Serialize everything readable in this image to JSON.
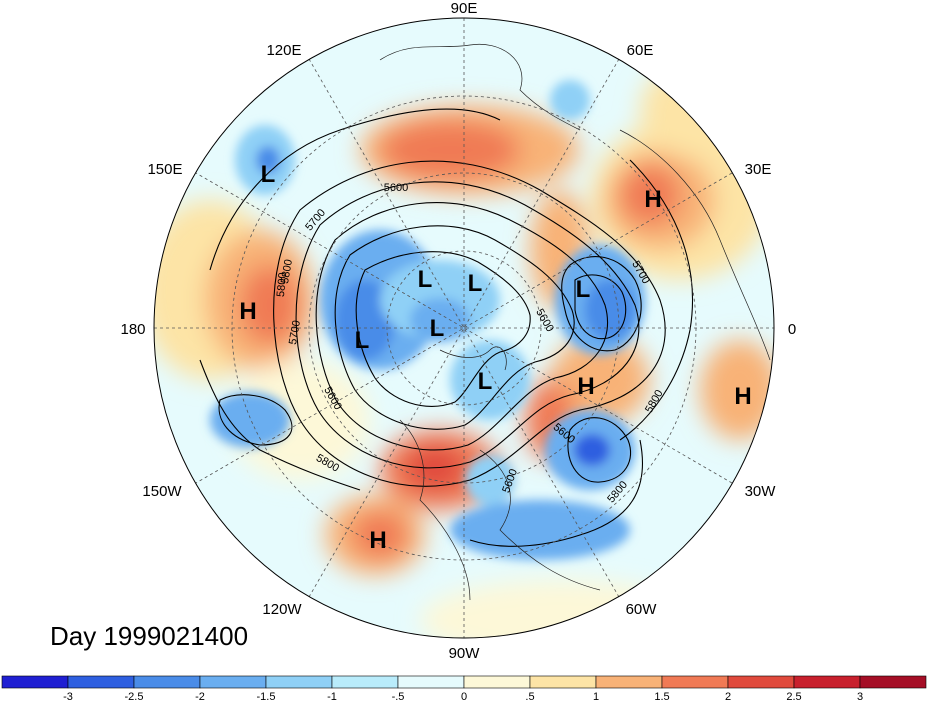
{
  "title": "Day 1999021400",
  "longitude_labels": [
    "90E",
    "60E",
    "30E",
    "0",
    "30W",
    "60W",
    "90W",
    "120W",
    "150W",
    "180",
    "150E",
    "120E"
  ],
  "pressure_systems": [
    "L",
    "L",
    "L",
    "L",
    "L",
    "L",
    "L",
    "H",
    "H",
    "H",
    "H",
    "H"
  ],
  "contour_labels": [
    "5600",
    "5700",
    "5800",
    "5700",
    "5600",
    "5800",
    "5600",
    "5700",
    "5800",
    "5600",
    "5800",
    "5600",
    "5800"
  ],
  "colorbar": {
    "ticks": [
      "-3",
      "-2.5",
      "-2",
      "-1.5",
      "-1",
      "-.5",
      "0",
      ".5",
      "1",
      "1.5",
      "2",
      "2.5",
      "3"
    ],
    "colors": [
      "#1f1fd2",
      "#2e5fe0",
      "#4a8ce8",
      "#6aaef0",
      "#8fd0f6",
      "#b9ecfb",
      "#e6fbfd",
      "#fdf8d8",
      "#fde4a6",
      "#f8b277",
      "#f07a55",
      "#e04a3c",
      "#c8202d",
      "#a50e26"
    ]
  }
}
